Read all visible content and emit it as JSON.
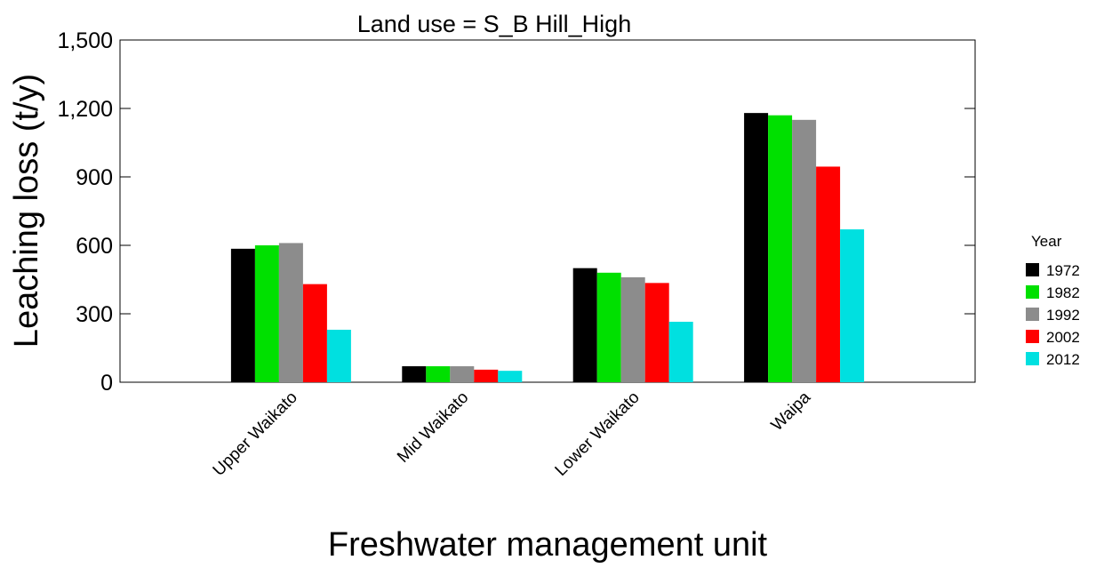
{
  "chart_data": {
    "type": "bar",
    "title": "Land use = S_B Hill_High",
    "x_label": "Freshwater management unit",
    "y_label": "Leaching loss (t/y)",
    "legend_title": "Year",
    "categories": [
      "Upper Waikato",
      "Mid Waikato",
      "Lower Waikato",
      "Waipa"
    ],
    "series": [
      {
        "name": "1972",
        "color": "#000000",
        "values": [
          585,
          70,
          500,
          1180
        ]
      },
      {
        "name": "1982",
        "color": "#00e000",
        "values": [
          600,
          70,
          480,
          1170
        ]
      },
      {
        "name": "1992",
        "color": "#8c8c8c",
        "values": [
          610,
          70,
          460,
          1150
        ]
      },
      {
        "name": "2002",
        "color": "#ff0000",
        "values": [
          430,
          55,
          435,
          945
        ]
      },
      {
        "name": "2012",
        "color": "#00e0e0",
        "values": [
          230,
          50,
          265,
          670
        ]
      }
    ],
    "ylim": [
      0,
      1500
    ],
    "yticks": [
      0,
      300,
      600,
      900,
      {
        "value": 1200,
        "label": "1,200"
      },
      {
        "value": 1500,
        "label": "1,500"
      }
    ],
    "legend": "right"
  }
}
